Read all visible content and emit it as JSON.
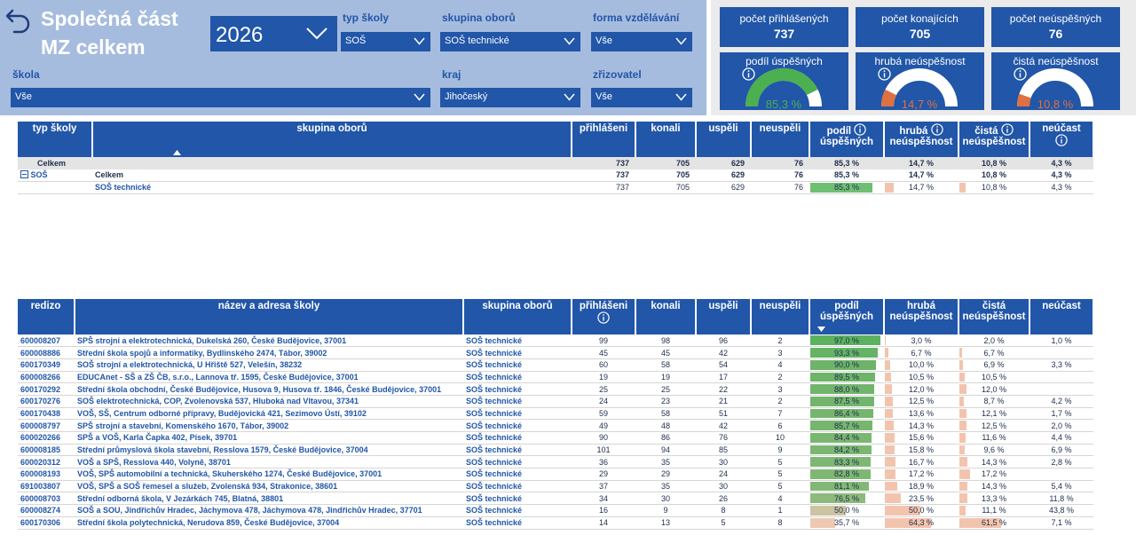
{
  "header": {
    "title_line1": "Společná část",
    "title_line2": "MZ celkem",
    "year": "2026"
  },
  "filters": {
    "typ_skoly": {
      "label": "typ školy",
      "value": "SOŠ"
    },
    "skupina_oboru": {
      "label": "skupina oborů",
      "value": "SOŠ technické"
    },
    "forma_vzdelavani": {
      "label": "forma vzdělávání",
      "value": "Vše"
    },
    "skola": {
      "label": "škola",
      "value": "Vše"
    },
    "kraj": {
      "label": "kraj",
      "value": "Jihočeský"
    },
    "zrizovatel": {
      "label": "zřizovatel",
      "value": "Vše"
    }
  },
  "kpis": {
    "prihlasenych": {
      "label": "počet přihlášených",
      "value": "737"
    },
    "konajicich": {
      "label": "počet konajících",
      "value": "705"
    },
    "neuspesnych": {
      "label": "počet neúspěšných",
      "value": "76"
    },
    "podil_uspesnych": {
      "label": "podíl úspěšných",
      "value": "85,3 %",
      "fraction": 0.853,
      "color": "#4caf50"
    },
    "hruba_neuspesnost": {
      "label": "hrubá neúspěšnost",
      "value": "14,7 %",
      "fraction": 0.147,
      "color": "#e07040"
    },
    "cista_neuspesnost": {
      "label": "čistá neúspěšnost",
      "value": "10,8 %",
      "fraction": 0.108,
      "color": "#e07040"
    }
  },
  "summary_table": {
    "headers": {
      "typ_skoly": "typ školy",
      "skupina_oboru": "skupina oborů",
      "prihlaseni": "přihlášeni",
      "konali": "konali",
      "uspeli": "uspěli",
      "neuspeli": "neuspěli",
      "podil_1": "podíl",
      "podil_2": "úspěšných",
      "hruba_1": "hrubá",
      "hruba_2": "neúspěšnost",
      "cista_1": "čistá",
      "cista_2": "neúspěšnost",
      "neucast": "neúčast"
    },
    "total": {
      "label": "Celkem",
      "prihlaseni": "737",
      "konali": "705",
      "uspeli": "629",
      "neuspeli": "76",
      "podil": "85,3 %",
      "hruba": "14,7 %",
      "cista": "10,8 %",
      "neucast": "4,3 %"
    },
    "group": {
      "typ": "SOŠ",
      "label": "Celkem",
      "prihlaseni": "737",
      "konali": "705",
      "uspeli": "629",
      "neuspeli": "76",
      "podil": "85,3 %",
      "hruba": "14,7 %",
      "cista": "10,8 %",
      "neucast": "4,3 %"
    },
    "detail": {
      "skupina": "SOŠ technické",
      "prihlaseni": "737",
      "konali": "705",
      "uspeli": "629",
      "neuspeli": "76",
      "podil": "85,3 %",
      "podil_frac": 0.853,
      "hruba": "14,7 %",
      "hruba_frac": 0.147,
      "cista": "10,8 %",
      "cista_frac": 0.108,
      "neucast": "4,3 %"
    }
  },
  "schools_table": {
    "headers": {
      "redizo": "redizo",
      "nazev": "název a adresa školy",
      "skupina": "skupina oborů",
      "prihlaseni": "přihlášeni",
      "konali": "konali",
      "uspeli": "uspěli",
      "neuspeli": "neuspěli",
      "podil_1": "podíl",
      "podil_2": "úspěšných",
      "hruba_1": "hrubá",
      "hruba_2": "neúspěšnost",
      "cista_1": "čistá",
      "cista_2": "neúspěšnost",
      "neucast": "neúčast"
    },
    "rows": [
      {
        "redizo": "600008207",
        "nazev": "SPŠ strojní a elektrotechnická, Dukelská 260, České Budějovice, 37001",
        "skupina": "SOŠ technické",
        "prihlaseni": "99",
        "konali": "98",
        "uspeli": "96",
        "neuspeli": "2",
        "podil": "97,0 %",
        "podil_f": 0.97,
        "hruba": "3,0 %",
        "hruba_f": 0.03,
        "cista": "2,0 %",
        "cista_f": 0.02,
        "neucast": "1,0 %"
      },
      {
        "redizo": "600008886",
        "nazev": "Střední škola spojů a informatiky, Bydlinského 2474, Tábor, 39002",
        "skupina": "SOŠ technické",
        "prihlaseni": "45",
        "konali": "45",
        "uspeli": "42",
        "neuspeli": "3",
        "podil": "93,3 %",
        "podil_f": 0.933,
        "hruba": "6,7 %",
        "hruba_f": 0.067,
        "cista": "6,7 %",
        "cista_f": 0.067,
        "neucast": ""
      },
      {
        "redizo": "600170349",
        "nazev": "SOŠ strojní a elektrotechnická, U Hřiště 527, Velešín, 38232",
        "skupina": "SOŠ technické",
        "prihlaseni": "60",
        "konali": "58",
        "uspeli": "54",
        "neuspeli": "4",
        "podil": "90,0 %",
        "podil_f": 0.9,
        "hruba": "10,0 %",
        "hruba_f": 0.1,
        "cista": "6,9 %",
        "cista_f": 0.069,
        "neucast": "3,3 %"
      },
      {
        "redizo": "600008266",
        "nazev": "EDUCAnet - SŠ a ZŠ ČB, s.r.o., Lannova tř. 1595, České Budějovice, 37001",
        "skupina": "SOŠ technické",
        "prihlaseni": "19",
        "konali": "19",
        "uspeli": "17",
        "neuspeli": "2",
        "podil": "89,5 %",
        "podil_f": 0.895,
        "hruba": "10,5 %",
        "hruba_f": 0.105,
        "cista": "10,5 %",
        "cista_f": 0.105,
        "neucast": ""
      },
      {
        "redizo": "600170292",
        "nazev": "Střední škola obchodní, České Budějovice, Husova 9, Husova tř. 1846, České Budějovice, 37001",
        "skupina": "SOŠ technické",
        "prihlaseni": "25",
        "konali": "25",
        "uspeli": "22",
        "neuspeli": "3",
        "podil": "88,0 %",
        "podil_f": 0.88,
        "hruba": "12,0 %",
        "hruba_f": 0.12,
        "cista": "12,0 %",
        "cista_f": 0.12,
        "neucast": ""
      },
      {
        "redizo": "600170276",
        "nazev": "SOŠ elektrotechnická, COP, Zvolenovská 537, Hluboká nad Vltavou, 37341",
        "skupina": "SOŠ technické",
        "prihlaseni": "24",
        "konali": "23",
        "uspeli": "21",
        "neuspeli": "2",
        "podil": "87,5 %",
        "podil_f": 0.875,
        "hruba": "12,5 %",
        "hruba_f": 0.125,
        "cista": "8,7 %",
        "cista_f": 0.087,
        "neucast": "4,2 %"
      },
      {
        "redizo": "600170438",
        "nazev": "VOŠ, SŠ, Centrum odborné přípravy, Budějovická 421, Sezimovo Ústí, 39102",
        "skupina": "SOŠ technické",
        "prihlaseni": "59",
        "konali": "58",
        "uspeli": "51",
        "neuspeli": "7",
        "podil": "86,4 %",
        "podil_f": 0.864,
        "hruba": "13,6 %",
        "hruba_f": 0.136,
        "cista": "12,1 %",
        "cista_f": 0.121,
        "neucast": "1,7 %"
      },
      {
        "redizo": "600008797",
        "nazev": "SPŠ strojní a stavební, Komenského 1670, Tábor, 39002",
        "skupina": "SOŠ technické",
        "prihlaseni": "49",
        "konali": "48",
        "uspeli": "42",
        "neuspeli": "6",
        "podil": "85,7 %",
        "podil_f": 0.857,
        "hruba": "14,3 %",
        "hruba_f": 0.143,
        "cista": "12,5 %",
        "cista_f": 0.125,
        "neucast": "2,0 %"
      },
      {
        "redizo": "600020266",
        "nazev": "SPŠ a VOŠ, Karla Čapka 402, Písek, 39701",
        "skupina": "SOŠ technické",
        "prihlaseni": "90",
        "konali": "86",
        "uspeli": "76",
        "neuspeli": "10",
        "podil": "84,4 %",
        "podil_f": 0.844,
        "hruba": "15,6 %",
        "hruba_f": 0.156,
        "cista": "11,6 %",
        "cista_f": 0.116,
        "neucast": "4,4 %"
      },
      {
        "redizo": "600008185",
        "nazev": "Střední průmyslová škola stavební, Resslova 1579, České Budějovice, 37004",
        "skupina": "SOŠ technické",
        "prihlaseni": "101",
        "konali": "94",
        "uspeli": "85",
        "neuspeli": "9",
        "podil": "84,2 %",
        "podil_f": 0.842,
        "hruba": "15,8 %",
        "hruba_f": 0.158,
        "cista": "9,6 %",
        "cista_f": 0.096,
        "neucast": "6,9 %"
      },
      {
        "redizo": "600020312",
        "nazev": "VOŠ a SPŠ, Resslova 440, Volyně, 38701",
        "skupina": "SOŠ technické",
        "prihlaseni": "36",
        "konali": "35",
        "uspeli": "30",
        "neuspeli": "5",
        "podil": "83,3 %",
        "podil_f": 0.833,
        "hruba": "16,7 %",
        "hruba_f": 0.167,
        "cista": "14,3 %",
        "cista_f": 0.143,
        "neucast": "2,8 %"
      },
      {
        "redizo": "600008193",
        "nazev": "VOŠ, SPŠ automobilní a technická, Skuherského 1274, České Budějovice, 37001",
        "skupina": "SOŠ technické",
        "prihlaseni": "29",
        "konali": "29",
        "uspeli": "24",
        "neuspeli": "5",
        "podil": "82,8 %",
        "podil_f": 0.828,
        "hruba": "17,2 %",
        "hruba_f": 0.172,
        "cista": "17,2 %",
        "cista_f": 0.172,
        "neucast": ""
      },
      {
        "redizo": "691003807",
        "nazev": "VOŠ, SPŠ a SOŠ řemesel a služeb, Zvolenská 934, Strakonice, 38601",
        "skupina": "SOŠ technické",
        "prihlaseni": "37",
        "konali": "35",
        "uspeli": "30",
        "neuspeli": "5",
        "podil": "81,1 %",
        "podil_f": 0.811,
        "hruba": "18,9 %",
        "hruba_f": 0.189,
        "cista": "14,3 %",
        "cista_f": 0.143,
        "neucast": "5,4 %"
      },
      {
        "redizo": "600008703",
        "nazev": "Střední odborná škola, V Jezárkách 745, Blatná, 38801",
        "skupina": "SOŠ technické",
        "prihlaseni": "34",
        "konali": "30",
        "uspeli": "26",
        "neuspeli": "4",
        "podil": "76,5 %",
        "podil_f": 0.765,
        "hruba": "23,5 %",
        "hruba_f": 0.235,
        "cista": "13,3 %",
        "cista_f": 0.133,
        "neucast": "11,8 %"
      },
      {
        "redizo": "600008274",
        "nazev": "SOŠ a SOU, Jindřichův Hradec, Jáchymova 478, Jáchymova 478, Jindřichův Hradec, 37701",
        "skupina": "SOŠ technické",
        "prihlaseni": "16",
        "konali": "9",
        "uspeli": "8",
        "neuspeli": "1",
        "podil": "50,0 %",
        "podil_f": 0.5,
        "hruba": "50,0 %",
        "hruba_f": 0.5,
        "cista": "11,1 %",
        "cista_f": 0.111,
        "neucast": "43,8 %"
      },
      {
        "redizo": "600170306",
        "nazev": "Střední škola polytechnická, Nerudova 859, České Budějovice, 37004",
        "skupina": "SOŠ technické",
        "prihlaseni": "14",
        "konali": "13",
        "uspeli": "5",
        "neuspeli": "8",
        "podil": "35,7 %",
        "podil_f": 0.357,
        "hruba": "64,3 %",
        "hruba_f": 0.643,
        "cista": "61,5 %",
        "cista_f": 0.615,
        "neucast": "7,1 %"
      }
    ]
  }
}
